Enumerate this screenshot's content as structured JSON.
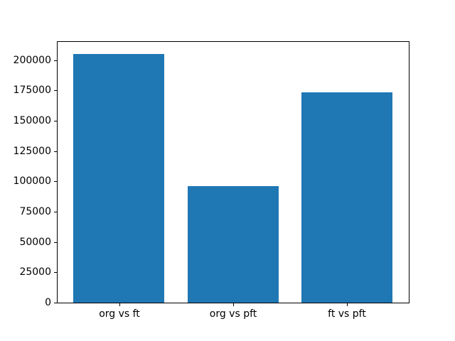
{
  "chart_data": {
    "type": "bar",
    "title": "",
    "xlabel": "",
    "ylabel": "",
    "categories": [
      "org vs ft",
      "org vs pft",
      "ft vs pft"
    ],
    "values": [
      204800,
      96000,
      173600
    ],
    "ylim": [
      0,
      215000
    ],
    "yticks": [
      0,
      25000,
      50000,
      75000,
      100000,
      125000,
      150000,
      175000,
      200000
    ],
    "grid": false,
    "legend": null,
    "bar_color": "#1f77b4",
    "axis_color": "#000000",
    "background_color": "#ffffff"
  }
}
